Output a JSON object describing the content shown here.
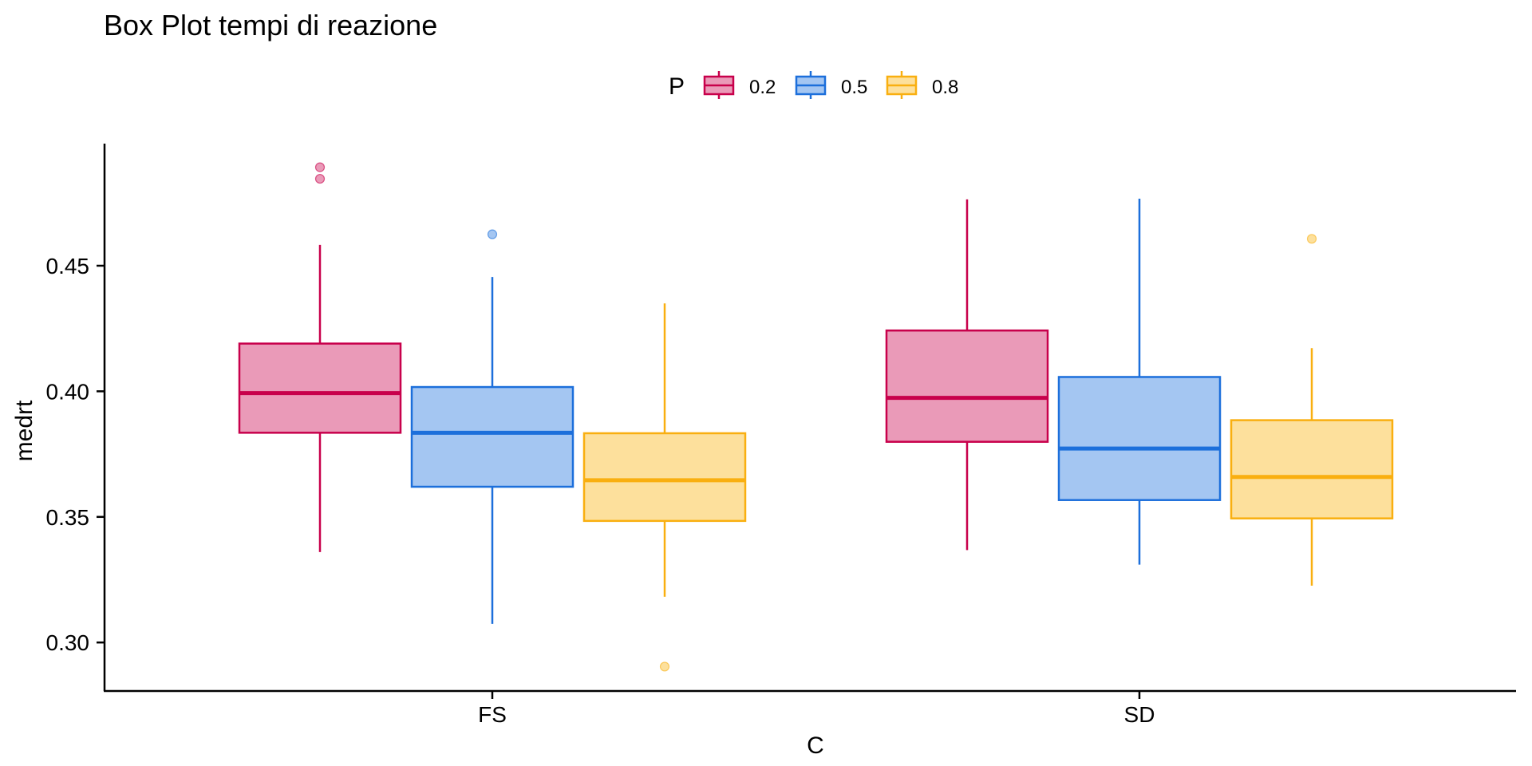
{
  "chart_data": {
    "type": "box",
    "title": "Box Plot tempi di reazione",
    "xlabel": "C",
    "ylabel": "medrt",
    "ylim": [
      0.281,
      0.498
    ],
    "yticks": [
      "0.30",
      "0.35",
      "0.40",
      "0.45"
    ],
    "categories": [
      "FS",
      "SD"
    ],
    "legend": {
      "title": "P",
      "position": "top-center"
    },
    "grid": false,
    "series": [
      {
        "name": "0.2",
        "color": "#C8004B",
        "fill": "#EA9AB8",
        "boxes": [
          {
            "category": "FS",
            "q1": 0.3835,
            "median": 0.3993,
            "q3": 0.419,
            "whisker_low": 0.336,
            "whisker_high": 0.4583,
            "outliers": [
              0.4846,
              0.4892
            ]
          },
          {
            "category": "SD",
            "q1": 0.3799,
            "median": 0.3974,
            "q3": 0.4242,
            "whisker_low": 0.3368,
            "whisker_high": 0.4764,
            "outliers": []
          }
        ]
      },
      {
        "name": "0.5",
        "color": "#1C6FDB",
        "fill": "#A4C6F2",
        "boxes": [
          {
            "category": "FS",
            "q1": 0.362,
            "median": 0.3835,
            "q3": 0.4017,
            "whisker_low": 0.3074,
            "whisker_high": 0.4455,
            "outliers": [
              0.4625
            ]
          },
          {
            "category": "SD",
            "q1": 0.3567,
            "median": 0.3772,
            "q3": 0.4057,
            "whisker_low": 0.331,
            "whisker_high": 0.4767,
            "outliers": []
          }
        ]
      },
      {
        "name": "0.8",
        "color": "#F9AF10",
        "fill": "#FDE09C",
        "boxes": [
          {
            "category": "FS",
            "q1": 0.3484,
            "median": 0.3646,
            "q3": 0.3833,
            "whisker_low": 0.3182,
            "whisker_high": 0.435,
            "outliers": [
              0.2904
            ]
          },
          {
            "category": "SD",
            "q1": 0.3494,
            "median": 0.3659,
            "q3": 0.3885,
            "whisker_low": 0.3226,
            "whisker_high": 0.4172,
            "outliers": [
              0.4607
            ]
          }
        ]
      }
    ]
  }
}
